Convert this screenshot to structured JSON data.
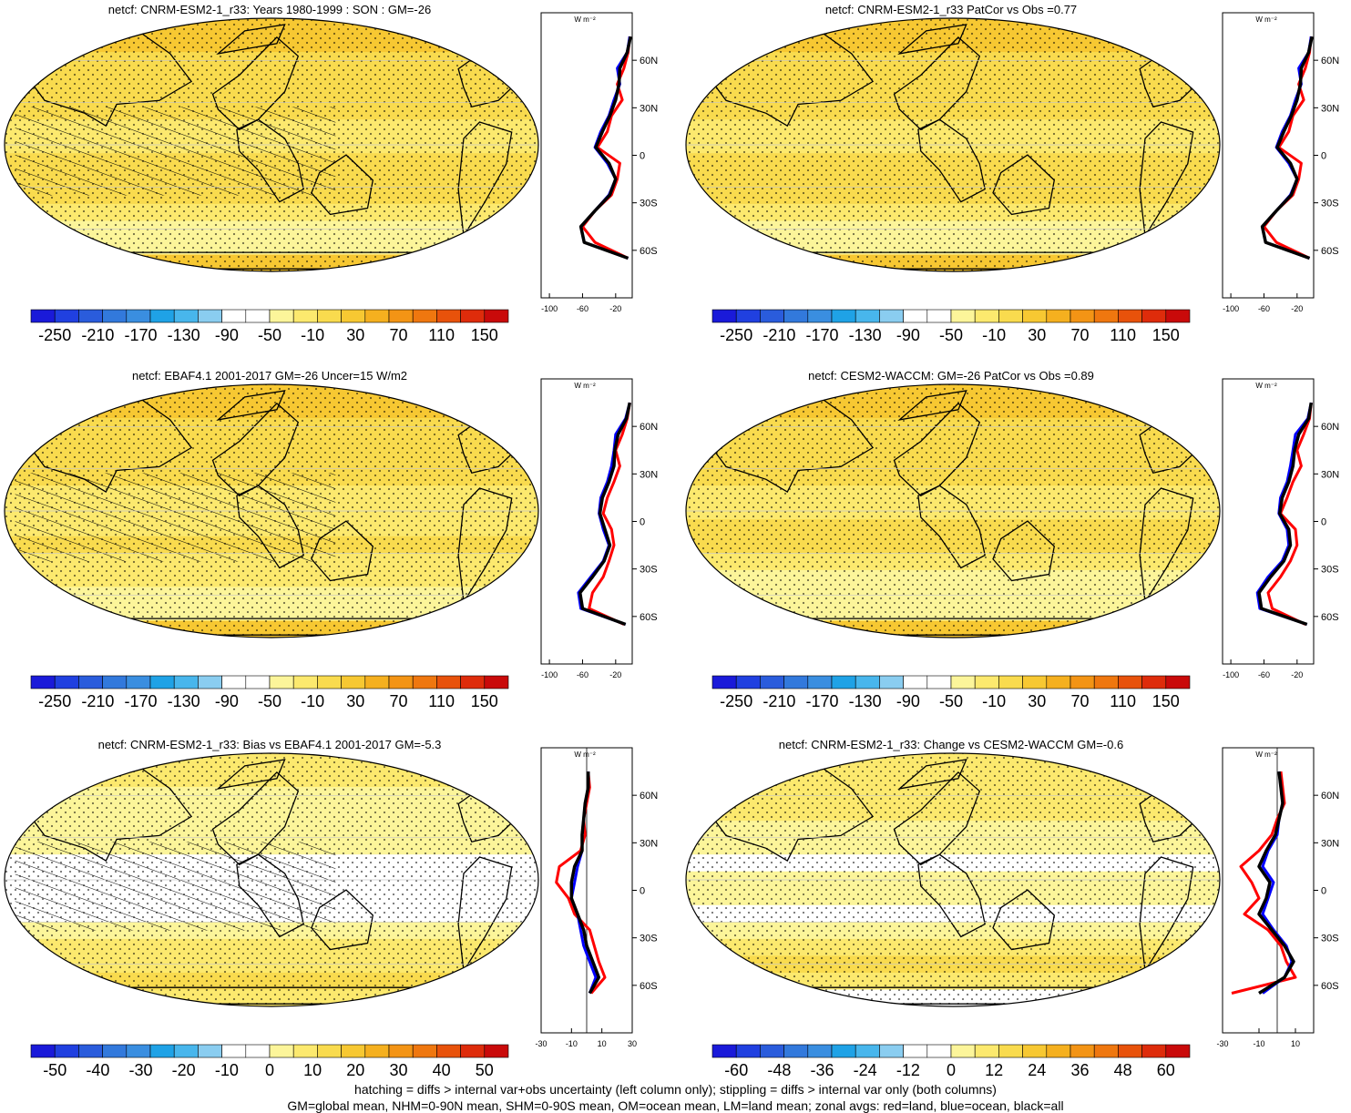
{
  "figure": {
    "footer_line1": "hatching = diffs > internal var+obs uncertainty (left column only); stippling = diffs > internal var only (both columns)",
    "footer_line2": "GM=global mean, NHM=0-90N mean, SHM=0-90S mean, OM=ocean mean, LM=land mean; zonal avgs: red=land, blue=ocean, black=all",
    "colors": {
      "land": "#ff0000",
      "ocean": "#0000ff",
      "all": "#000000",
      "continents": "#000000",
      "stipple": "#000000"
    }
  },
  "chart_data": [
    {
      "type": "heatmap",
      "title": "netcf: CNRM-ESM2-1_r33: Years 1980-1999 : SON : GM=-26",
      "colorbar_ticks": [
        "-250",
        "-210",
        "-170",
        "-130",
        "-90",
        "-50",
        "-10",
        "30",
        "70",
        "110",
        "150"
      ],
      "colorbar_range": [
        -270,
        170
      ],
      "colorbar_step": 20,
      "hatching": true,
      "zonal": {
        "units": "W m⁻²",
        "lat_ticks": [
          "60N",
          "30N",
          "0",
          "30S",
          "60S"
        ],
        "x_ticks": [
          "-100",
          "-60",
          "-20"
        ],
        "xlim": [
          -110,
          0
        ],
        "lat": [
          75,
          65,
          55,
          45,
          35,
          25,
          15,
          5,
          -5,
          -15,
          -25,
          -35,
          -45,
          -55,
          -65
        ],
        "land": [
          -3,
          -5,
          -10,
          -18,
          -12,
          -25,
          -30,
          -42,
          -15,
          -18,
          -25,
          -45,
          -60,
          -45,
          -5
        ],
        "ocean": [
          -3,
          -6,
          -18,
          -15,
          -22,
          -28,
          -38,
          -45,
          -30,
          -20,
          -28,
          -45,
          -62,
          -58,
          -5
        ],
        "all": [
          -2,
          -6,
          -15,
          -16,
          -20,
          -27,
          -36,
          -44,
          -28,
          -20,
          -27,
          -45,
          -62,
          -58,
          -5
        ]
      }
    },
    {
      "type": "heatmap",
      "title": "netcf: CNRM-ESM2-1_r33 PatCor vs Obs =0.77",
      "colorbar_ticks": [
        "-250",
        "-210",
        "-170",
        "-130",
        "-90",
        "-50",
        "-10",
        "30",
        "70",
        "110",
        "150"
      ],
      "colorbar_range": [
        -270,
        170
      ],
      "colorbar_step": 20,
      "hatching": false,
      "zonal": {
        "units": "W m⁻²",
        "lat_ticks": [
          "60N",
          "30N",
          "0",
          "30S",
          "60S"
        ],
        "x_ticks": [
          "-100",
          "-60",
          "-20"
        ],
        "xlim": [
          -110,
          0
        ],
        "lat": [
          75,
          65,
          55,
          45,
          35,
          25,
          15,
          5,
          -5,
          -15,
          -25,
          -35,
          -45,
          -55,
          -65
        ],
        "land": [
          -3,
          -5,
          -10,
          -18,
          -12,
          -25,
          -30,
          -42,
          -15,
          -18,
          -25,
          -45,
          -60,
          -45,
          -5
        ],
        "ocean": [
          -3,
          -6,
          -18,
          -15,
          -22,
          -28,
          -38,
          -45,
          -30,
          -20,
          -28,
          -45,
          -62,
          -58,
          -5
        ],
        "all": [
          -2,
          -6,
          -15,
          -16,
          -20,
          -27,
          -36,
          -44,
          -28,
          -20,
          -27,
          -45,
          -62,
          -58,
          -5
        ]
      }
    },
    {
      "type": "heatmap",
      "title": "netcf: EBAF4.1 2001-2017 GM=-26 Uncer=15 W/m2",
      "colorbar_ticks": [
        "-250",
        "-210",
        "-170",
        "-130",
        "-90",
        "-50",
        "-10",
        "30",
        "70",
        "110",
        "150"
      ],
      "colorbar_range": [
        -270,
        170
      ],
      "colorbar_step": 20,
      "hatching": true,
      "zonal": {
        "units": "W m⁻²",
        "lat_ticks": [
          "60N",
          "30N",
          "0",
          "30S",
          "60S"
        ],
        "x_ticks": [
          "-100",
          "-60",
          "-20"
        ],
        "xlim": [
          -110,
          0
        ],
        "lat": [
          75,
          65,
          55,
          45,
          35,
          25,
          15,
          5,
          -5,
          -15,
          -25,
          -35,
          -45,
          -55,
          -65
        ],
        "land": [
          -3,
          -6,
          -12,
          -20,
          -15,
          -22,
          -30,
          -35,
          -25,
          -22,
          -28,
          -35,
          -48,
          -52,
          -10
        ],
        "ocean": [
          -3,
          -8,
          -20,
          -22,
          -25,
          -30,
          -38,
          -40,
          -35,
          -28,
          -35,
          -50,
          -65,
          -62,
          -8
        ],
        "all": [
          -3,
          -7,
          -17,
          -21,
          -22,
          -28,
          -36,
          -39,
          -33,
          -27,
          -34,
          -48,
          -63,
          -60,
          -8
        ]
      }
    },
    {
      "type": "heatmap",
      "title": "netcf: CESM2-WACCM: GM=-26 PatCor vs Obs =0.89",
      "colorbar_ticks": [
        "-250",
        "-210",
        "-170",
        "-130",
        "-90",
        "-50",
        "-10",
        "30",
        "70",
        "110",
        "150"
      ],
      "colorbar_range": [
        -270,
        170
      ],
      "colorbar_step": 20,
      "hatching": false,
      "zonal": {
        "units": "W m⁻²",
        "lat_ticks": [
          "60N",
          "30N",
          "0",
          "30S",
          "60S"
        ],
        "x_ticks": [
          "-100",
          "-60",
          "-20"
        ],
        "xlim": [
          -110,
          0
        ],
        "lat": [
          75,
          65,
          55,
          45,
          35,
          25,
          15,
          5,
          -5,
          -15,
          -25,
          -35,
          -45,
          -55,
          -65
        ],
        "land": [
          -3,
          -5,
          -12,
          -20,
          -15,
          -25,
          -32,
          -40,
          -22,
          -20,
          -28,
          -40,
          -55,
          -50,
          -10
        ],
        "ocean": [
          -3,
          -7,
          -22,
          -25,
          -28,
          -32,
          -40,
          -42,
          -32,
          -30,
          -38,
          -55,
          -68,
          -65,
          -8
        ],
        "all": [
          -3,
          -6,
          -18,
          -23,
          -25,
          -30,
          -38,
          -41,
          -30,
          -28,
          -36,
          -52,
          -66,
          -63,
          -8
        ]
      }
    },
    {
      "type": "heatmap",
      "title": "netcf: CNRM-ESM2-1_r33: Bias vs EBAF4.1 2001-2017  GM=-5.3",
      "colorbar_ticks": [
        "-50",
        "-40",
        "-30",
        "-20",
        "-10",
        "0",
        "10",
        "20",
        "30",
        "40",
        "50"
      ],
      "colorbar_range": [
        -55,
        55
      ],
      "colorbar_step": 5,
      "hatching": true,
      "zonal": {
        "units": "W m⁻²",
        "lat_ticks": [
          "60N",
          "30N",
          "0",
          "30S",
          "60S"
        ],
        "x_ticks": [
          "-30",
          "-10",
          "10",
          "30"
        ],
        "xlim": [
          -30,
          30
        ],
        "lat": [
          75,
          65,
          55,
          45,
          35,
          25,
          15,
          5,
          -5,
          -15,
          -25,
          -35,
          -45,
          -55,
          -65
        ],
        "land": [
          1,
          2,
          0,
          -2,
          -1,
          -4,
          -18,
          -20,
          -12,
          -8,
          2,
          5,
          8,
          12,
          3
        ],
        "ocean": [
          1,
          1,
          -1,
          -2,
          -3,
          -3,
          -6,
          -8,
          -10,
          -6,
          -4,
          -2,
          2,
          6,
          2
        ],
        "all": [
          1,
          1,
          -1,
          -2,
          -3,
          -3,
          -8,
          -10,
          -10,
          -6,
          -2,
          0,
          4,
          8,
          2
        ]
      }
    },
    {
      "type": "heatmap",
      "title": "netcf: CNRM-ESM2-1_r33: Change vs CESM2-WACCM GM=-0.6",
      "colorbar_ticks": [
        "-60",
        "-48",
        "-36",
        "-24",
        "-12",
        "0",
        "12",
        "24",
        "36",
        "48",
        "60"
      ],
      "colorbar_range": [
        -66,
        66
      ],
      "colorbar_step": 6,
      "hatching": false,
      "zonal": {
        "units": "W m⁻²",
        "lat_ticks": [
          "60N",
          "30N",
          "0",
          "30S",
          "60S"
        ],
        "x_ticks": [
          "-30",
          "-10",
          "10"
        ],
        "xlim": [
          -30,
          20
        ],
        "lat": [
          75,
          65,
          55,
          45,
          35,
          25,
          15,
          5,
          -5,
          -15,
          -25,
          -35,
          -45,
          -55,
          -65
        ],
        "land": [
          2,
          3,
          4,
          0,
          -3,
          -10,
          -20,
          -14,
          -10,
          -18,
          -5,
          2,
          5,
          10,
          -25
        ],
        "ocean": [
          1,
          2,
          3,
          1,
          0,
          -5,
          -8,
          -2,
          -5,
          -8,
          -2,
          5,
          8,
          4,
          -8
        ],
        "all": [
          1,
          2,
          3,
          1,
          -1,
          -6,
          -10,
          -4,
          -6,
          -10,
          -3,
          4,
          9,
          4,
          -10
        ]
      }
    }
  ]
}
